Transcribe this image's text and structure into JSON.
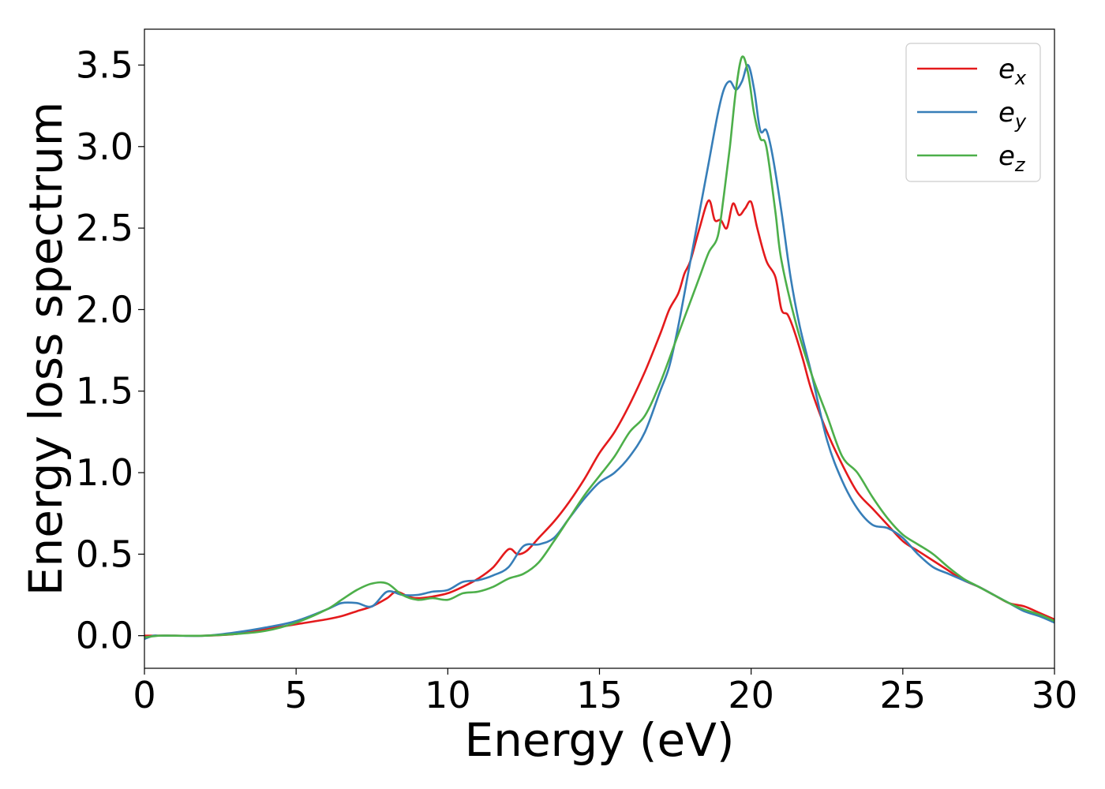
{
  "chart_data": {
    "type": "line",
    "title": "",
    "xlabel": "Energy (eV)",
    "ylabel": "Energy loss spectrum",
    "xlim": [
      0,
      30
    ],
    "ylim": [
      -0.2,
      3.72
    ],
    "xticks": [
      0,
      5,
      10,
      15,
      20,
      25,
      30
    ],
    "yticks": [
      0.0,
      0.5,
      1.0,
      1.5,
      2.0,
      2.5,
      3.0,
      3.5
    ],
    "grid": false,
    "legend_position": "top-right",
    "series": [
      {
        "name": "e_x",
        "label_main": "e",
        "label_sub": "x",
        "color": "#e41a1c",
        "x": [
          0,
          0.5,
          1,
          2,
          3,
          4,
          5,
          6,
          6.5,
          7,
          7.5,
          8,
          8.3,
          8.7,
          9,
          9.5,
          10,
          10.5,
          11,
          11.5,
          12,
          12.3,
          12.6,
          13,
          13.5,
          14,
          14.5,
          15,
          15.5,
          16,
          16.5,
          17,
          17.3,
          17.6,
          17.8,
          18,
          18.3,
          18.6,
          18.8,
          19,
          19.2,
          19.4,
          19.6,
          19.8,
          20,
          20.2,
          20.5,
          20.8,
          21,
          21.2,
          21.4,
          21.7,
          22,
          22.5,
          23,
          23.5,
          24,
          24.5,
          25,
          25.5,
          26,
          26.5,
          27,
          27.5,
          28,
          28.5,
          29,
          29.5,
          30
        ],
        "y": [
          0.0,
          0.0,
          0.0,
          0.0,
          0.01,
          0.04,
          0.07,
          0.1,
          0.12,
          0.15,
          0.18,
          0.23,
          0.27,
          0.24,
          0.23,
          0.24,
          0.26,
          0.3,
          0.35,
          0.42,
          0.53,
          0.5,
          0.52,
          0.6,
          0.7,
          0.82,
          0.96,
          1.12,
          1.25,
          1.42,
          1.62,
          1.85,
          2.0,
          2.1,
          2.22,
          2.3,
          2.5,
          2.67,
          2.55,
          2.55,
          2.5,
          2.65,
          2.58,
          2.62,
          2.66,
          2.5,
          2.3,
          2.2,
          2.0,
          1.97,
          1.88,
          1.7,
          1.5,
          1.25,
          1.05,
          0.88,
          0.78,
          0.68,
          0.58,
          0.52,
          0.46,
          0.4,
          0.34,
          0.3,
          0.25,
          0.2,
          0.18,
          0.14,
          0.1
        ]
      },
      {
        "name": "e_y",
        "label_main": "e",
        "label_sub": "y",
        "color": "#377eb8",
        "x": [
          0,
          0.3,
          0.5,
          1,
          2,
          3,
          4,
          5,
          6,
          6.5,
          7,
          7.5,
          8,
          8.5,
          9,
          9.5,
          10,
          10.5,
          11,
          11.5,
          12,
          12.5,
          13,
          13.5,
          14,
          14.5,
          15,
          15.5,
          16,
          16.5,
          17,
          17.3,
          17.6,
          18,
          18.3,
          18.6,
          18.9,
          19.1,
          19.3,
          19.5,
          19.7,
          19.9,
          20.1,
          20.3,
          20.5,
          20.7,
          21,
          21.3,
          21.6,
          22,
          22.5,
          23,
          23.5,
          24,
          24.5,
          25,
          25.5,
          26,
          26.5,
          27,
          27.5,
          28,
          28.5,
          29,
          29.5,
          30
        ],
        "y": [
          -0.02,
          0.0,
          0.0,
          0.0,
          0.0,
          0.02,
          0.05,
          0.09,
          0.16,
          0.2,
          0.2,
          0.18,
          0.27,
          0.25,
          0.25,
          0.27,
          0.28,
          0.33,
          0.34,
          0.37,
          0.42,
          0.55,
          0.56,
          0.6,
          0.72,
          0.84,
          0.94,
          1.0,
          1.1,
          1.25,
          1.5,
          1.65,
          1.9,
          2.3,
          2.6,
          2.9,
          3.2,
          3.35,
          3.4,
          3.35,
          3.4,
          3.5,
          3.35,
          3.1,
          3.1,
          2.95,
          2.6,
          2.2,
          1.9,
          1.6,
          1.2,
          0.95,
          0.78,
          0.68,
          0.66,
          0.6,
          0.5,
          0.42,
          0.38,
          0.34,
          0.3,
          0.25,
          0.2,
          0.15,
          0.12,
          0.08
        ]
      },
      {
        "name": "e_z",
        "label_main": "e",
        "label_sub": "z",
        "color": "#4daf4a",
        "x": [
          0,
          0.5,
          1,
          2,
          3,
          4,
          5,
          6,
          6.5,
          7,
          7.5,
          8,
          8.5,
          9,
          9.5,
          10,
          10.5,
          11,
          11.5,
          12,
          12.5,
          13,
          13.5,
          14,
          14.5,
          15,
          15.5,
          16,
          16.5,
          17,
          17.5,
          17.8,
          18,
          18.3,
          18.6,
          18.9,
          19.1,
          19.3,
          19.5,
          19.7,
          19.9,
          20.1,
          20.3,
          20.5,
          20.8,
          21,
          21.5,
          22,
          22.5,
          23,
          23.5,
          24,
          24.5,
          25,
          25.5,
          26,
          26.5,
          27,
          27.5,
          28,
          28.5,
          29,
          29.5,
          30
        ],
        "y": [
          -0.01,
          0.0,
          0.0,
          0.0,
          0.01,
          0.03,
          0.08,
          0.16,
          0.22,
          0.28,
          0.32,
          0.32,
          0.25,
          0.22,
          0.23,
          0.22,
          0.26,
          0.27,
          0.3,
          0.35,
          0.38,
          0.45,
          0.58,
          0.72,
          0.86,
          0.98,
          1.1,
          1.25,
          1.35,
          1.55,
          1.8,
          1.95,
          2.05,
          2.2,
          2.35,
          2.45,
          2.7,
          3.0,
          3.35,
          3.55,
          3.45,
          3.2,
          3.05,
          3.0,
          2.6,
          2.3,
          1.9,
          1.6,
          1.35,
          1.1,
          1.0,
          0.85,
          0.72,
          0.62,
          0.56,
          0.5,
          0.42,
          0.35,
          0.3,
          0.25,
          0.2,
          0.16,
          0.13,
          0.09
        ]
      }
    ]
  }
}
